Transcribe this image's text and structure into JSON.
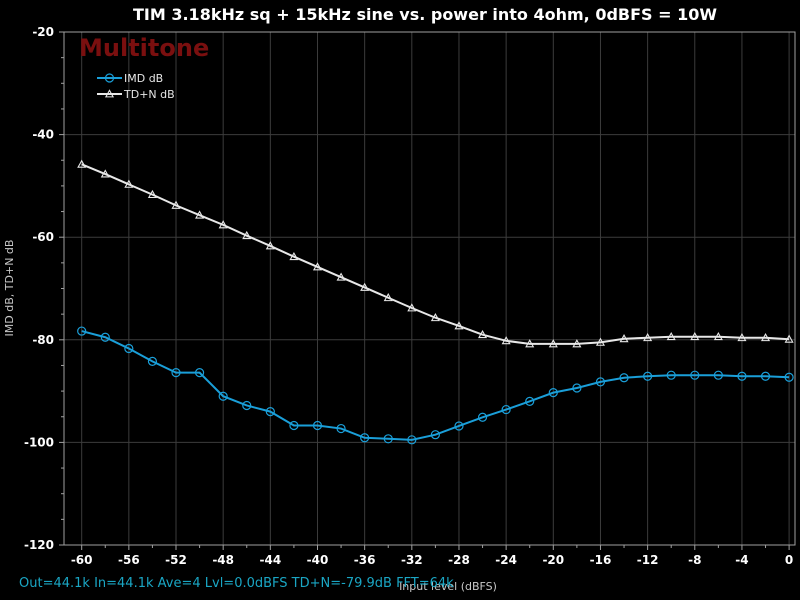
{
  "watermark": "Multitone",
  "status_line": "Out=44.1k  In=44.1k  Ave=4  Lvl=0.0dBFS  TD+N=-79.9dB  FFT=64k",
  "colors": {
    "background": "#000000",
    "plot_border": "#a0a0a0",
    "grid_major": "#3c3c3c",
    "imd": "#1a9fd9",
    "tdn": "#e8e8e8",
    "watermark": "#7a0f0f",
    "status": "#1aa6c4"
  },
  "chart_data": {
    "type": "line",
    "title": "TIM 3.18kHz sq + 15kHz sine vs. power into 4ohm, 0dBFS = 10W",
    "xlabel": "Input level (dBFS)",
    "ylabel": "IMD dB, TD+N dB",
    "xlim": [
      -61.5,
      0.5
    ],
    "ylim": [
      -120,
      -20
    ],
    "xticks": [
      -60,
      -56,
      -52,
      -48,
      -44,
      -40,
      -36,
      -32,
      -28,
      -24,
      -20,
      -16,
      -12,
      -8,
      -4,
      0
    ],
    "yticks": [
      -20,
      -40,
      -60,
      -80,
      -100,
      -120
    ],
    "grid": true,
    "legend_position": "top-left",
    "x": [
      -60,
      -58,
      -56,
      -54,
      -52,
      -50,
      -48,
      -46,
      -44,
      -42,
      -40,
      -38,
      -36,
      -34,
      -32,
      -30,
      -28,
      -26,
      -24,
      -22,
      -20,
      -18,
      -16,
      -14,
      -12,
      -10,
      -8,
      -6,
      -4,
      -2,
      0
    ],
    "series": [
      {
        "name": "IMD dB",
        "marker": "circle",
        "values": [
          -78.3,
          -79.5,
          -81.7,
          -84.2,
          -86.4,
          -86.4,
          -91.0,
          -92.8,
          -94.0,
          -96.7,
          -96.7,
          -97.3,
          -99.1,
          -99.3,
          -99.5,
          -98.5,
          -96.8,
          -95.1,
          -93.6,
          -92.0,
          -90.3,
          -89.4,
          -88.2,
          -87.4,
          -87.1,
          -86.9,
          -86.9,
          -86.9,
          -87.1,
          -87.1,
          -87.3
        ]
      },
      {
        "name": "TD+N dB",
        "marker": "triangle",
        "values": [
          -45.8,
          -47.7,
          -49.7,
          -51.7,
          -53.8,
          -55.7,
          -57.6,
          -59.7,
          -61.7,
          -63.8,
          -65.8,
          -67.8,
          -69.8,
          -71.8,
          -73.8,
          -75.7,
          -77.3,
          -79.0,
          -80.2,
          -80.8,
          -80.8,
          -80.8,
          -80.5,
          -79.8,
          -79.6,
          -79.4,
          -79.4,
          -79.4,
          -79.6,
          -79.6,
          -79.9
        ]
      }
    ]
  }
}
